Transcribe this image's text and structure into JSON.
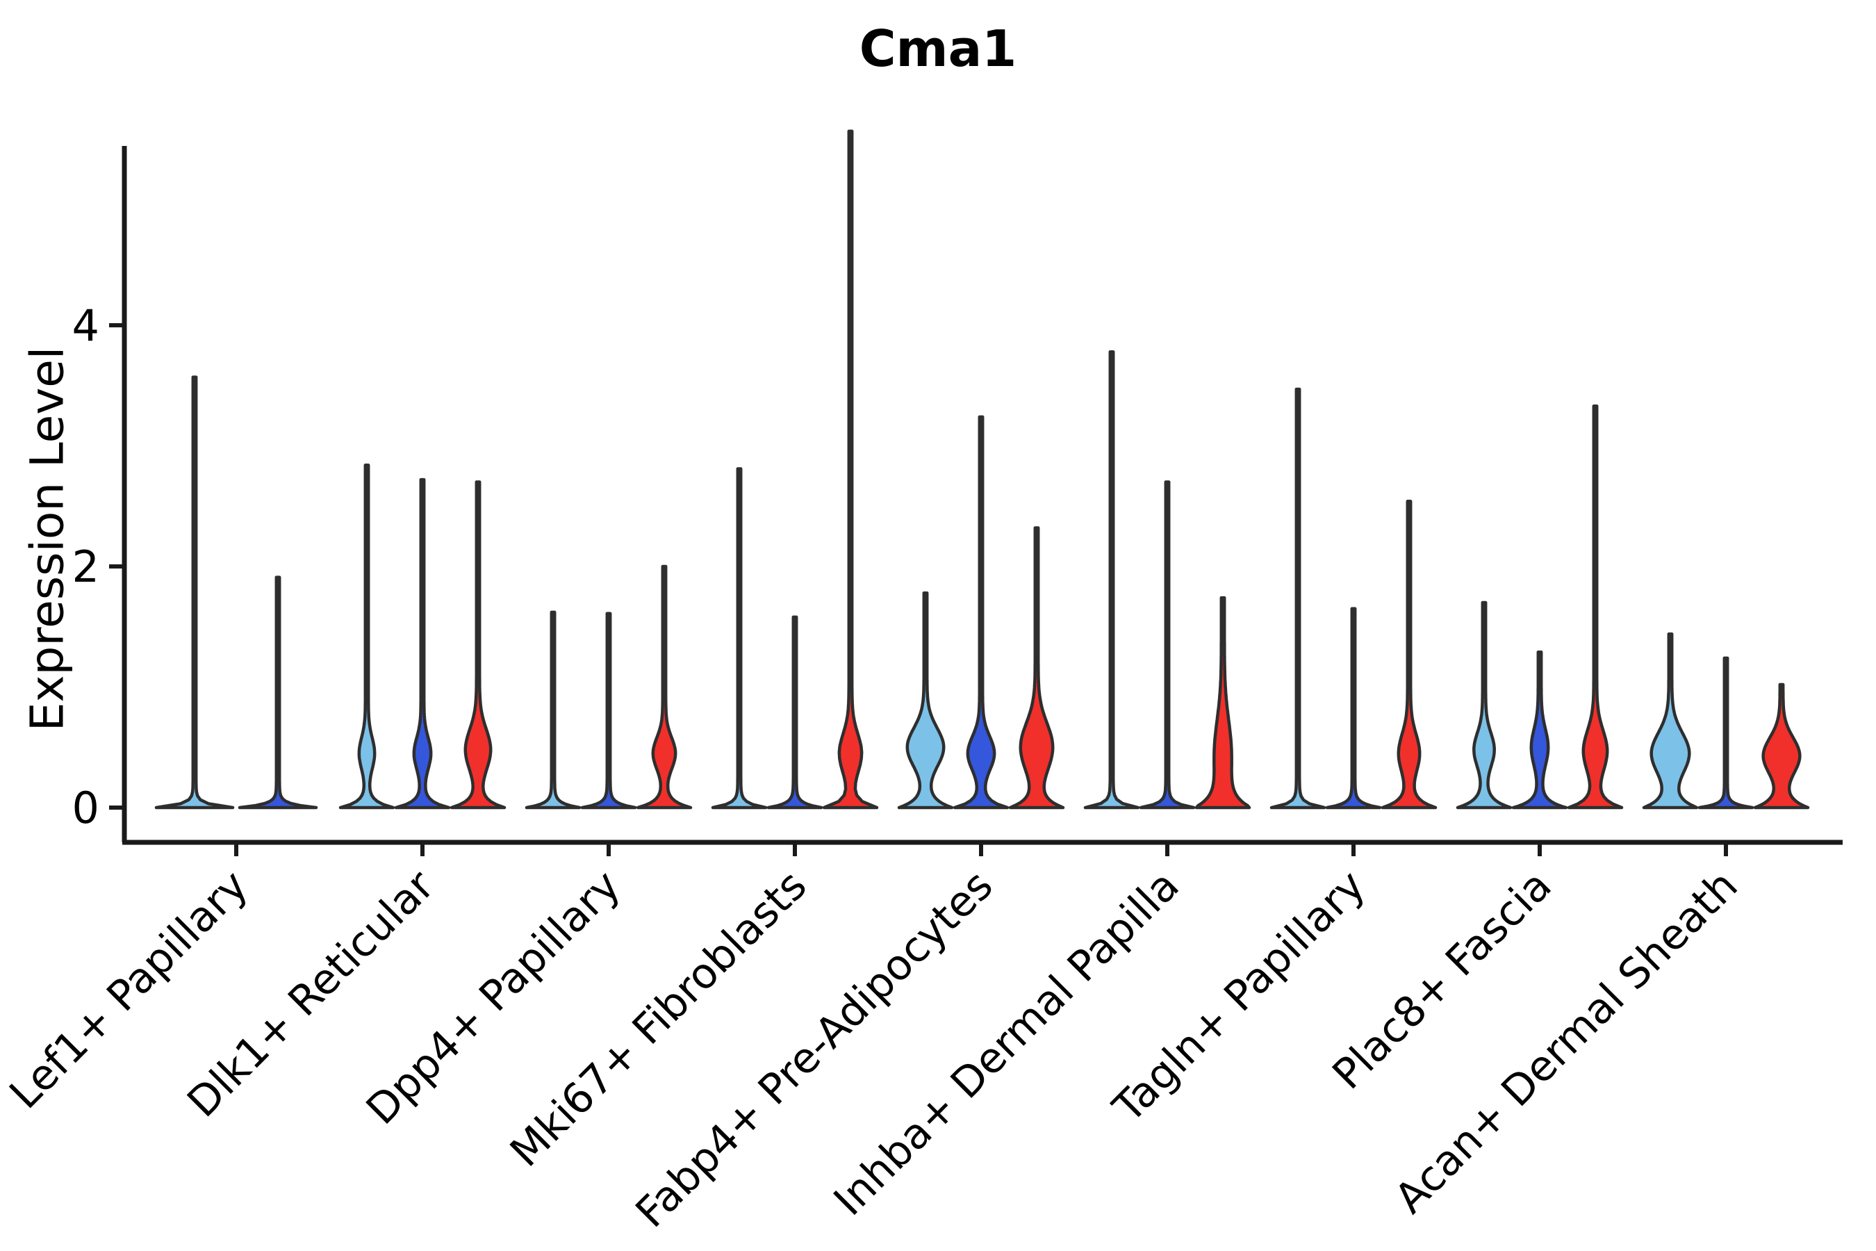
{
  "title": "Cma1",
  "y_axis": {
    "label": "Expression Level",
    "tick_labels": [
      "0",
      "2",
      "4"
    ]
  },
  "splits": [
    {
      "name": "light-blue-condition",
      "color": "#7CC1E8"
    },
    {
      "name": "blue-condition",
      "color": "#3457DB"
    },
    {
      "name": "red-condition",
      "color": "#F1302B"
    }
  ],
  "style": {
    "violin_outline": "#2E2E2E",
    "axis_color": "#1A1A1A",
    "text_color": "#000000",
    "background": "#FFFFFF"
  },
  "chart_data": {
    "type": "violin",
    "title": "Cma1",
    "xlabel": "",
    "ylabel": "Expression Level",
    "yticks": [
      0,
      2,
      4
    ],
    "ylim": [
      -0.3,
      5.9
    ],
    "grid": false,
    "legend": "none",
    "split_colors": [
      "#7CC1E8",
      "#3457DB",
      "#F1302B"
    ],
    "groups": [
      {
        "label": "Lef1+ Papillary",
        "violins": [
          {
            "split": 0,
            "max": 3.57,
            "lens_hw": 0,
            "lens_c": 0,
            "lens_s": 1,
            "base_s": 0.03
          },
          {
            "split": 1,
            "max": 1.91,
            "lens_hw": 0,
            "lens_c": 0,
            "lens_s": 1,
            "base_s": 0.03
          }
        ]
      },
      {
        "label": "Dlk1+ Reticular",
        "violins": [
          {
            "split": 0,
            "max": 2.84,
            "lens_hw": 9,
            "lens_c": 0.45,
            "lens_s": 0.13,
            "base_s": 0.05
          },
          {
            "split": 1,
            "max": 2.72,
            "lens_hw": 10,
            "lens_c": 0.45,
            "lens_s": 0.13,
            "base_s": 0.05
          },
          {
            "split": 2,
            "max": 2.7,
            "lens_hw": 16,
            "lens_c": 0.48,
            "lens_s": 0.17,
            "base_s": 0.06
          }
        ]
      },
      {
        "label": "Dpp4+ Papillary",
        "violins": [
          {
            "split": 0,
            "max": 1.62,
            "lens_hw": 0,
            "lens_c": 0,
            "lens_s": 1,
            "base_s": 0.035
          },
          {
            "split": 1,
            "max": 1.61,
            "lens_hw": 0,
            "lens_c": 0,
            "lens_s": 1,
            "base_s": 0.035
          },
          {
            "split": 2,
            "max": 2.0,
            "lens_hw": 14,
            "lens_c": 0.45,
            "lens_s": 0.13,
            "base_s": 0.055
          }
        ]
      },
      {
        "label": "Mki67+ Fibroblasts",
        "violins": [
          {
            "split": 0,
            "max": 2.81,
            "lens_hw": 0,
            "lens_c": 0,
            "lens_s": 1,
            "base_s": 0.035
          },
          {
            "split": 1,
            "max": 1.58,
            "lens_hw": 0,
            "lens_c": 0,
            "lens_s": 1,
            "base_s": 0.035
          },
          {
            "split": 2,
            "max": 5.61,
            "lens_hw": 14,
            "lens_c": 0.45,
            "lens_s": 0.16,
            "base_s": 0.055
          }
        ]
      },
      {
        "label": "Fabp4+ Pre-Adipocytes",
        "violins": [
          {
            "split": 0,
            "max": 1.78,
            "lens_hw": 24,
            "lens_c": 0.5,
            "lens_s": 0.16,
            "base_s": 0.07
          },
          {
            "split": 1,
            "max": 3.24,
            "lens_hw": 17,
            "lens_c": 0.45,
            "lens_s": 0.14,
            "base_s": 0.055
          },
          {
            "split": 2,
            "max": 2.32,
            "lens_hw": 21,
            "lens_c": 0.5,
            "lens_s": 0.2,
            "base_s": 0.07
          }
        ]
      },
      {
        "label": "Inhba+ Dermal Papilla",
        "violins": [
          {
            "split": 0,
            "max": 3.78,
            "lens_hw": 0,
            "lens_c": 0,
            "lens_s": 1,
            "base_s": 0.035
          },
          {
            "split": 1,
            "max": 2.7,
            "lens_hw": 0,
            "lens_c": 0,
            "lens_s": 1,
            "base_s": 0.035
          },
          {
            "split": 2,
            "max": 1.74,
            "lens_hw": 10,
            "lens_c": 0.45,
            "lens_s": 0.28,
            "base_s": 0.1
          }
        ]
      },
      {
        "label": "Tagln+ Papillary",
        "violins": [
          {
            "split": 0,
            "max": 3.47,
            "lens_hw": 0,
            "lens_c": 0,
            "lens_s": 1,
            "base_s": 0.035
          },
          {
            "split": 1,
            "max": 1.65,
            "lens_hw": 0,
            "lens_c": 0,
            "lens_s": 1,
            "base_s": 0.035
          },
          {
            "split": 2,
            "max": 2.54,
            "lens_hw": 13,
            "lens_c": 0.45,
            "lens_s": 0.16,
            "base_s": 0.065
          }
        ]
      },
      {
        "label": "Plac8+ Fascia",
        "violins": [
          {
            "split": 0,
            "max": 1.7,
            "lens_hw": 12.5,
            "lens_c": 0.48,
            "lens_s": 0.14,
            "base_s": 0.065
          },
          {
            "split": 1,
            "max": 1.29,
            "lens_hw": 10,
            "lens_c": 0.5,
            "lens_s": 0.15,
            "base_s": 0.055
          },
          {
            "split": 2,
            "max": 3.33,
            "lens_hw": 15,
            "lens_c": 0.47,
            "lens_s": 0.17,
            "base_s": 0.065
          }
        ]
      },
      {
        "label": "Acan+ Dermal Sheath",
        "violins": [
          {
            "split": 0,
            "max": 1.44,
            "lens_hw": 25,
            "lens_c": 0.45,
            "lens_s": 0.17,
            "base_s": 0.075
          },
          {
            "split": 1,
            "max": 1.24,
            "lens_hw": 0,
            "lens_c": 0,
            "lens_s": 1,
            "base_s": 0.03
          },
          {
            "split": 2,
            "max": 1.02,
            "lens_hw": 24,
            "lens_c": 0.43,
            "lens_s": 0.15,
            "base_s": 0.075
          }
        ]
      }
    ]
  }
}
